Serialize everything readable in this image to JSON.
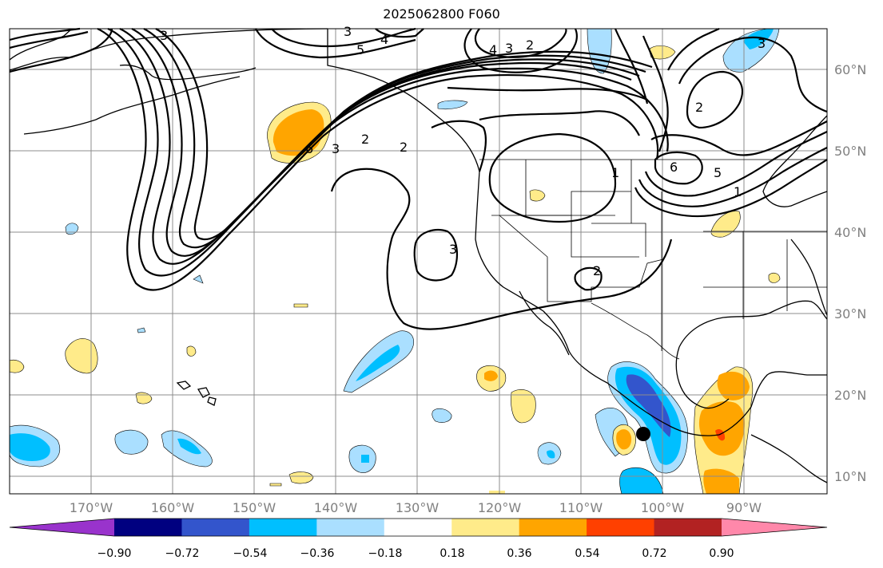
{
  "title": "2025062800 F060",
  "map": {
    "lon_ticks": [
      "170°W",
      "160°W",
      "150°W",
      "140°W",
      "130°W",
      "120°W",
      "110°W",
      "100°W",
      "90°W"
    ],
    "lat_ticks": [
      "60°N",
      "50°N",
      "40°N",
      "30°N",
      "20°N",
      "10°N"
    ],
    "contour_labels": [
      "3",
      "4",
      "5",
      "4",
      "3",
      "2",
      "3",
      "3",
      "2",
      "6",
      "3",
      "2",
      "2",
      "3",
      "1",
      "2",
      "6",
      "5",
      "1"
    ],
    "marker": "storm-center-dot"
  },
  "colorbar": {
    "ticks": [
      "−0.90",
      "−0.72",
      "−0.54",
      "−0.36",
      "−0.18",
      "0.18",
      "0.36",
      "0.54",
      "0.72",
      "0.90"
    ],
    "colors": [
      "#9933cc",
      "#000080",
      "#3355cc",
      "#00bfff",
      "#aadfff",
      "#ffffff",
      "#ffeb8a",
      "#ffa500",
      "#ff4000",
      "#b22222",
      "#ff88aa"
    ]
  }
}
